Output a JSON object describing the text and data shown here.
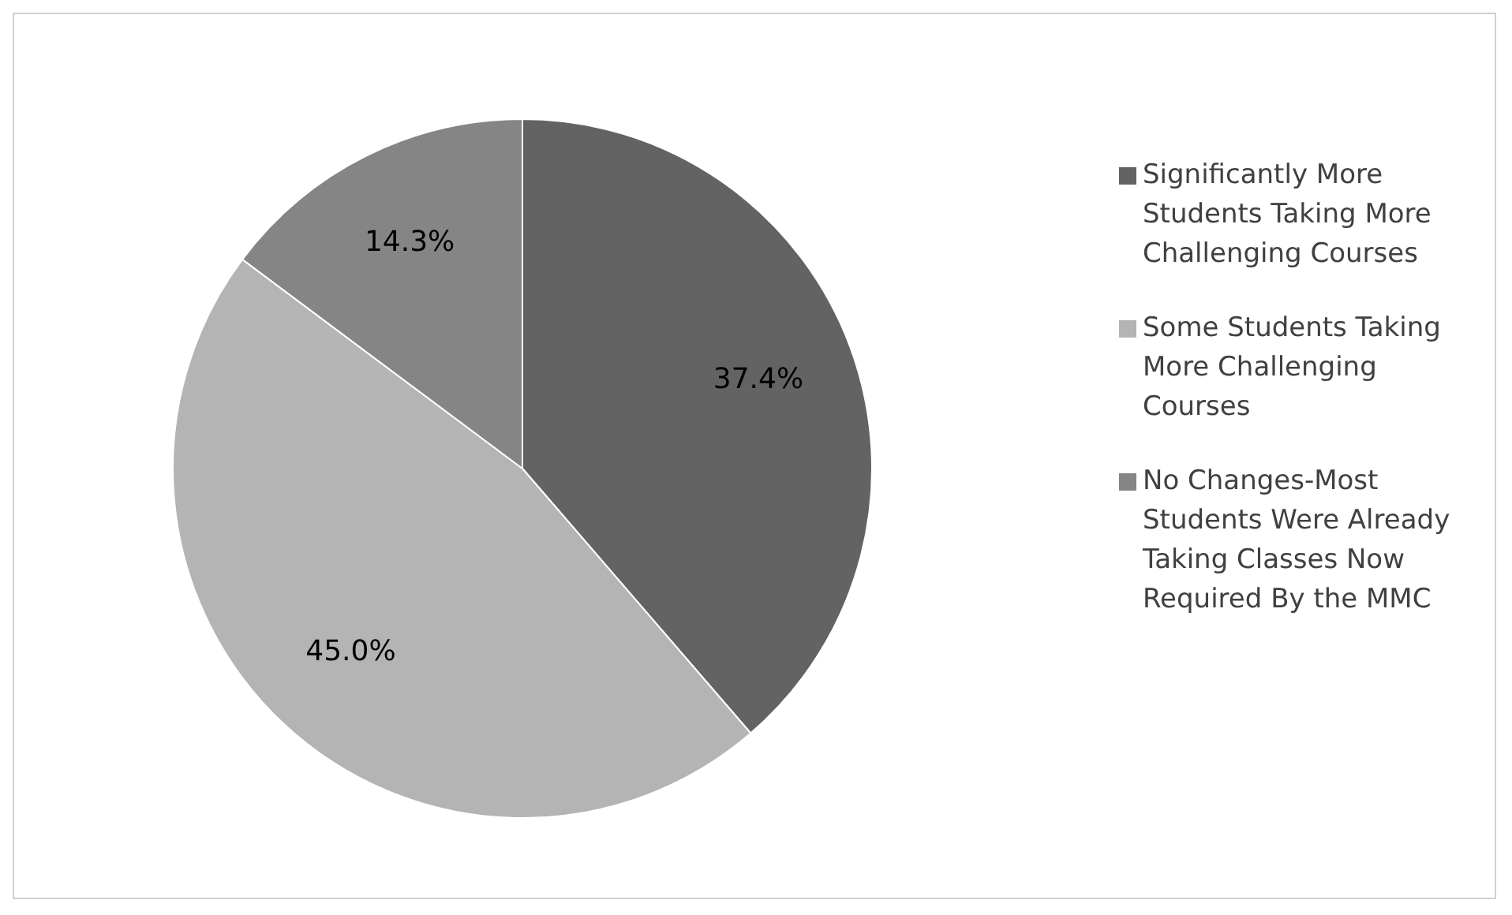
{
  "chart_data": {
    "type": "pie",
    "categories": [
      "Significantly More Students Taking More Challenging Courses",
      "Some Students Taking More Challenging Courses",
      "No Changes-Most Students Were Already Taking Classes Now Required By the MMC"
    ],
    "values": [
      37.4,
      45.0,
      14.3
    ],
    "value_labels": [
      "37.4%",
      "45.0%",
      "14.3%"
    ],
    "colors": [
      "#636363",
      "#b4b4b4",
      "#858585"
    ],
    "legend": "right"
  }
}
